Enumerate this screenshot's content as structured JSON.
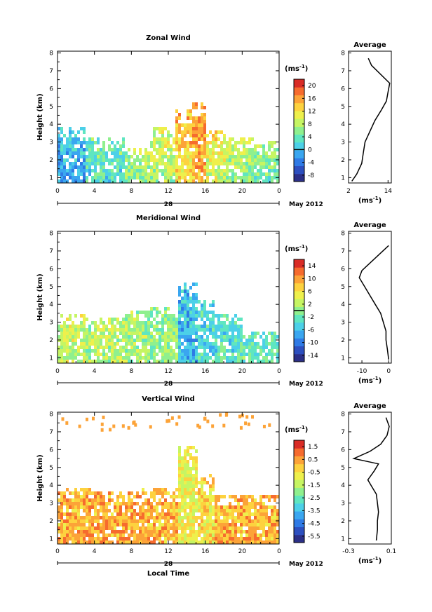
{
  "chart_data": [
    {
      "type": "heatmap",
      "title": "Zonal Wind",
      "ylabel": "Height (km)",
      "xticks": [
        "0",
        "4",
        "8",
        "12",
        "16",
        "20",
        "0"
      ],
      "xlim": [
        0,
        24
      ],
      "yticks": [
        "1",
        "2",
        "3",
        "4",
        "5",
        "6",
        "7",
        "8"
      ],
      "ylim": [
        0.7,
        8.1
      ],
      "day_label": "28",
      "month_label": "May 2012",
      "colorbar": {
        "unit": "(ms-1)",
        "ticks": [
          "-8",
          "-4",
          "0",
          "4",
          "8",
          "12",
          "16",
          "20"
        ],
        "range": [
          -10,
          22
        ],
        "zero_line": 0
      },
      "data_profile": [
        {
          "x_start": 0,
          "x_end": 3,
          "top": 3.7,
          "value": -2
        },
        {
          "x_start": 3,
          "x_end": 7,
          "top": 3.1,
          "value": 2
        },
        {
          "x_start": 7,
          "x_end": 10,
          "top": 2.5,
          "value": 5
        },
        {
          "x_start": 10,
          "x_end": 12.5,
          "top": 3.8,
          "value": 7
        },
        {
          "x_start": 12.5,
          "x_end": 14.5,
          "top": 4.8,
          "value": 12
        },
        {
          "x_start": 14.5,
          "x_end": 16,
          "top": 5.2,
          "value": 14
        },
        {
          "x_start": 16,
          "x_end": 18,
          "top": 3.6,
          "value": 9
        },
        {
          "x_start": 18,
          "x_end": 21,
          "top": 3.2,
          "value": 6
        },
        {
          "x_start": 21,
          "x_end": 24,
          "top": 2.9,
          "value": 4
        }
      ],
      "average_profile": {
        "title": "Average",
        "xlabel": "(ms-1)",
        "xticks": [
          "2",
          "14"
        ],
        "xlim": [
          2,
          15
        ],
        "height": [
          0.8,
          1.2,
          1.8,
          2.4,
          3.0,
          3.6,
          4.2,
          4.8,
          5.3,
          5.8,
          6.3,
          7.3,
          7.7
        ],
        "value": [
          3,
          4.5,
          6,
          6.5,
          7,
          8.5,
          10,
          12,
          13.5,
          14,
          14.5,
          9,
          8
        ]
      }
    },
    {
      "type": "heatmap",
      "title": "Meridional Wind",
      "ylabel": "Height (km)",
      "xticks": [
        "0",
        "4",
        "8",
        "12",
        "16",
        "20",
        "0"
      ],
      "xlim": [
        0,
        24
      ],
      "yticks": [
        "1",
        "2",
        "3",
        "4",
        "5",
        "6",
        "7",
        "8"
      ],
      "ylim": [
        0.7,
        8.1
      ],
      "day_label": "28",
      "month_label": "May 2012",
      "colorbar": {
        "unit": "(ms-1)",
        "ticks": [
          "-14",
          "-10",
          "-6",
          "-2",
          "2",
          "6",
          "10",
          "14"
        ],
        "range": [
          -16,
          16
        ],
        "zero_line": 0
      },
      "data_profile": [
        {
          "x_start": 0,
          "x_end": 3,
          "top": 3.4,
          "value": 3
        },
        {
          "x_start": 3,
          "x_end": 7,
          "top": 3.2,
          "value": 2
        },
        {
          "x_start": 7,
          "x_end": 10,
          "top": 3.6,
          "value": 1
        },
        {
          "x_start": 10,
          "x_end": 13,
          "top": 3.8,
          "value": 0
        },
        {
          "x_start": 13,
          "x_end": 15,
          "top": 5.1,
          "value": -6
        },
        {
          "x_start": 15,
          "x_end": 17,
          "top": 4.2,
          "value": -4
        },
        {
          "x_start": 17,
          "x_end": 20,
          "top": 3.3,
          "value": -3
        },
        {
          "x_start": 20,
          "x_end": 24,
          "top": 2.3,
          "value": -2
        }
      ],
      "average_profile": {
        "title": "Average",
        "xlabel": "(ms-1)",
        "xticks": [
          "-10",
          "0"
        ],
        "xlim": [
          -15,
          1
        ],
        "height": [
          0.9,
          1.5,
          2.0,
          2.5,
          3.0,
          3.5,
          4.0,
          4.5,
          5.0,
          5.5,
          5.9,
          7.3
        ],
        "value": [
          0,
          -0.5,
          -1,
          -1,
          -2,
          -3,
          -5,
          -7,
          -9,
          -11,
          -10,
          0
        ]
      }
    },
    {
      "type": "heatmap",
      "title": "Vertical Wind",
      "ylabel": "Height (km)",
      "xlabel": "Local Time",
      "xticks": [
        "0",
        "4",
        "8",
        "12",
        "16",
        "20",
        "0"
      ],
      "xlim": [
        0,
        24
      ],
      "yticks": [
        "1",
        "2",
        "3",
        "4",
        "5",
        "6",
        "7",
        "8"
      ],
      "ylim": [
        0.7,
        8.1
      ],
      "day_label": "28",
      "month_label": "May 2012",
      "colorbar": {
        "unit": "(ms-1)",
        "ticks": [
          "-5.5",
          "-4.5",
          "-3.5",
          "-2.5",
          "-1.5",
          "-0.5",
          "0.5",
          "1.5"
        ],
        "range": [
          -6,
          2
        ],
        "zero_line": null
      },
      "data_profile": [
        {
          "x_start": 0,
          "x_end": 4,
          "top": 3.8,
          "value": 0.2
        },
        {
          "x_start": 4,
          "x_end": 9,
          "top": 3.6,
          "value": 0.3
        },
        {
          "x_start": 9,
          "x_end": 13,
          "top": 3.7,
          "value": 0.2
        },
        {
          "x_start": 13,
          "x_end": 15,
          "top": 6.2,
          "value": -0.8
        },
        {
          "x_start": 15,
          "x_end": 17,
          "top": 4.6,
          "value": -0.4
        },
        {
          "x_start": 17,
          "x_end": 24,
          "top": 3.4,
          "value": 0.2
        }
      ],
      "average_profile": {
        "title": "Average",
        "xlabel": "(ms-1)",
        "xticks": [
          "-0.3",
          "0.1"
        ],
        "xlim": [
          -0.3,
          0.1
        ],
        "height": [
          0.9,
          1.5,
          2.0,
          2.5,
          3.0,
          3.5,
          3.9,
          4.3,
          4.8,
          5.2,
          5.5,
          5.9,
          6.3,
          6.8,
          7.3,
          7.8
        ],
        "value": [
          -0.04,
          -0.03,
          -0.03,
          -0.02,
          -0.03,
          -0.04,
          -0.08,
          -0.12,
          -0.06,
          -0.02,
          -0.25,
          -0.1,
          0.0,
          0.06,
          0.08,
          0.05
        ]
      }
    }
  ]
}
